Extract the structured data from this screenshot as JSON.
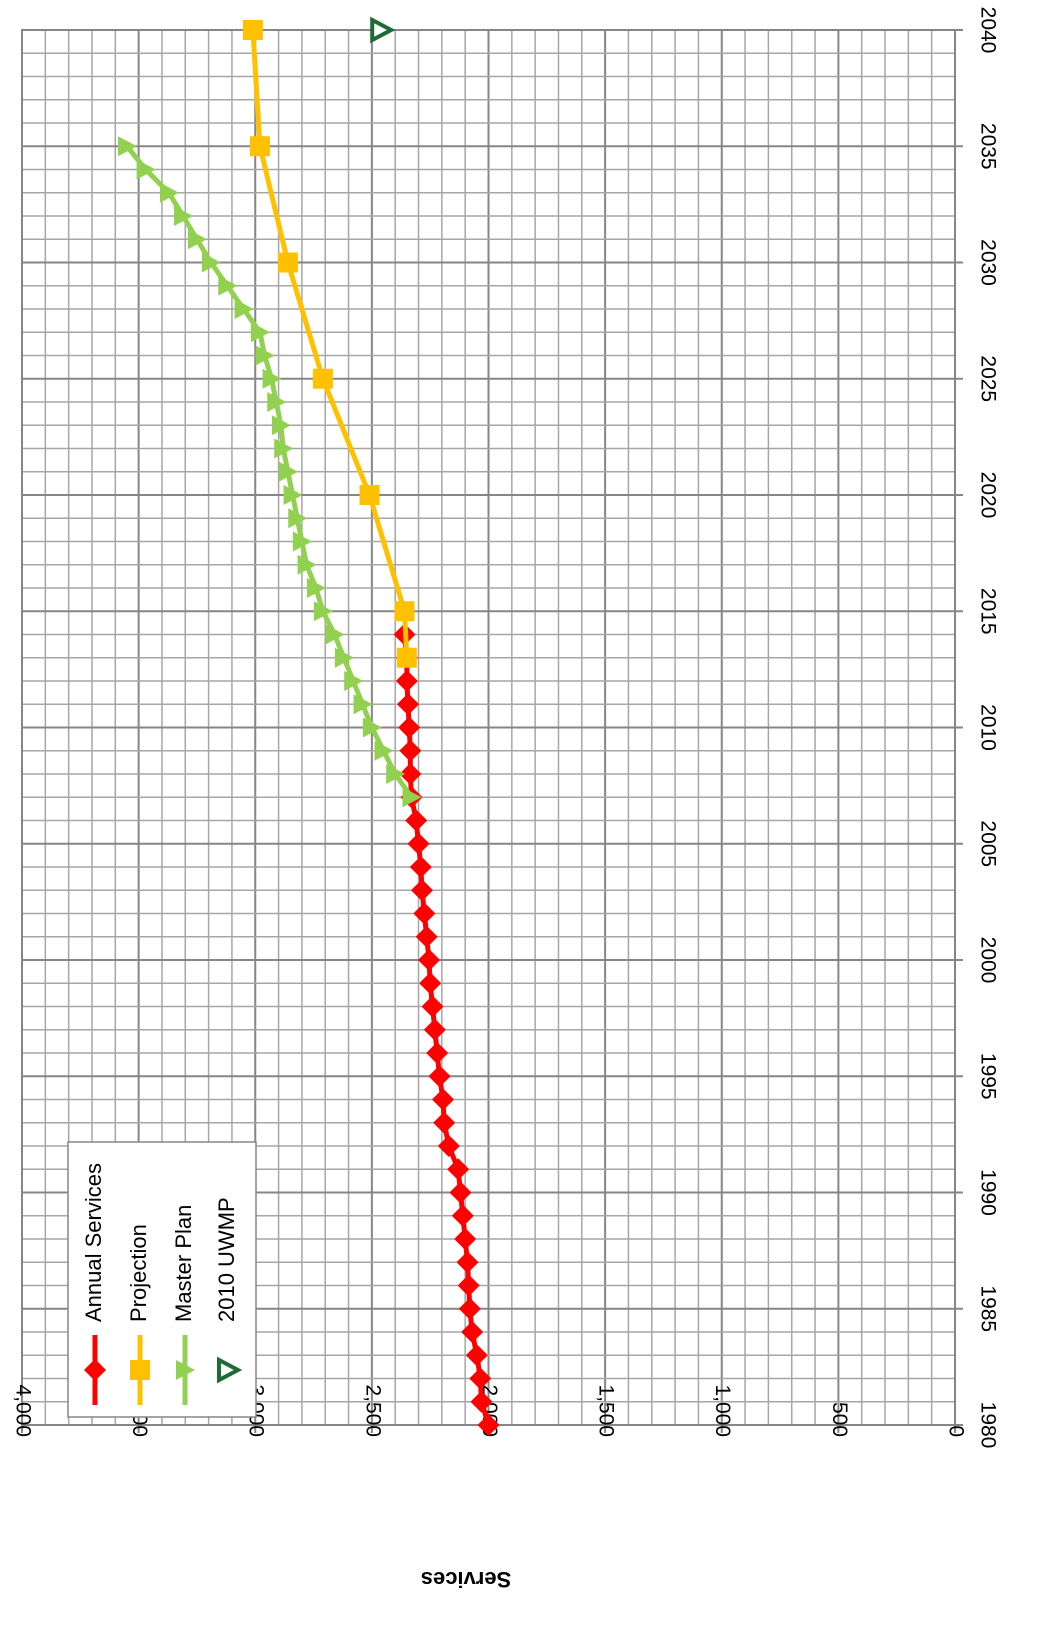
{
  "chart_data": {
    "type": "line",
    "title": "",
    "xlabel": "",
    "ylabel": "Services",
    "orientation": "rotated-180",
    "xlim": [
      1980,
      2040
    ],
    "ylim": [
      0,
      4000
    ],
    "grid": true,
    "legend_position": "bottom-left",
    "x_ticks": [
      "1980",
      "1985",
      "1990",
      "1995",
      "2000",
      "2005",
      "2010",
      "2015",
      "2020",
      "2025",
      "2030",
      "2035",
      "2040"
    ],
    "y_ticks": [
      "0",
      "500",
      "1,000",
      "1,500",
      "2,000",
      "2,500",
      "3,000",
      "3,500",
      "4,000"
    ],
    "series": [
      {
        "name": "Annual Services",
        "color": "#ff0000",
        "marker": "diamond",
        "points": [
          [
            1980,
            2000
          ],
          [
            1981,
            2030
          ],
          [
            1982,
            2035
          ],
          [
            1983,
            2050
          ],
          [
            1984,
            2070
          ],
          [
            1985,
            2080
          ],
          [
            1986,
            2085
          ],
          [
            1987,
            2090
          ],
          [
            1988,
            2100
          ],
          [
            1989,
            2110
          ],
          [
            1990,
            2120
          ],
          [
            1991,
            2130
          ],
          [
            1992,
            2170
          ],
          [
            1993,
            2190
          ],
          [
            1994,
            2195
          ],
          [
            1995,
            2210
          ],
          [
            1996,
            2220
          ],
          [
            1997,
            2230
          ],
          [
            1998,
            2240
          ],
          [
            1999,
            2250
          ],
          [
            2000,
            2255
          ],
          [
            2001,
            2265
          ],
          [
            2002,
            2275
          ],
          [
            2003,
            2285
          ],
          [
            2004,
            2290
          ],
          [
            2005,
            2300
          ],
          [
            2006,
            2310
          ],
          [
            2007,
            2330
          ],
          [
            2008,
            2335
          ],
          [
            2009,
            2335
          ],
          [
            2010,
            2340
          ],
          [
            2011,
            2345
          ],
          [
            2012,
            2350
          ],
          [
            2013,
            2350
          ],
          [
            2014,
            2360
          ]
        ]
      },
      {
        "name": "Projection",
        "color": "#ffc000",
        "marker": "square",
        "points": [
          [
            2013,
            2350
          ],
          [
            2015,
            2360
          ],
          [
            2020,
            2510
          ],
          [
            2025,
            2710
          ],
          [
            2030,
            2860
          ],
          [
            2035,
            2980
          ],
          [
            2040,
            3010
          ]
        ]
      },
      {
        "name": "Master Plan",
        "color": "#92d050",
        "marker": "triangle-down",
        "points": [
          [
            2007,
            2330
          ],
          [
            2008,
            2400
          ],
          [
            2009,
            2450
          ],
          [
            2010,
            2500
          ],
          [
            2011,
            2540
          ],
          [
            2012,
            2580
          ],
          [
            2013,
            2620
          ],
          [
            2014,
            2660
          ],
          [
            2015,
            2710
          ],
          [
            2016,
            2740
          ],
          [
            2017,
            2780
          ],
          [
            2018,
            2800
          ],
          [
            2019,
            2820
          ],
          [
            2020,
            2840
          ],
          [
            2021,
            2860
          ],
          [
            2022,
            2880
          ],
          [
            2023,
            2890
          ],
          [
            2024,
            2910
          ],
          [
            2025,
            2930
          ],
          [
            2026,
            2960
          ],
          [
            2027,
            2980
          ],
          [
            2028,
            3050
          ],
          [
            2029,
            3120
          ],
          [
            2030,
            3190
          ],
          [
            2031,
            3250
          ],
          [
            2032,
            3310
          ],
          [
            2033,
            3370
          ],
          [
            2034,
            3470
          ],
          [
            2035,
            3550
          ]
        ]
      },
      {
        "name": "2010 UWMP",
        "color": "#1e6b36",
        "marker": "triangle-hollow",
        "points": [
          [
            2040,
            2460
          ]
        ]
      }
    ]
  }
}
